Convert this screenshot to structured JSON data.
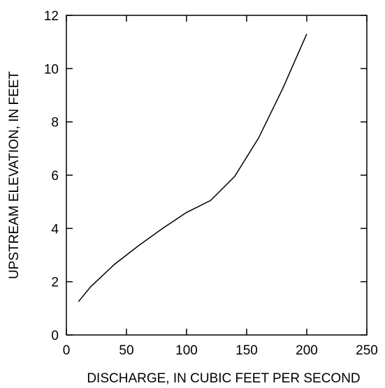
{
  "chart_data": {
    "type": "line",
    "xlabel": "DISCHARGE, IN CUBIC FEET PER SECOND",
    "ylabel": "UPSTREAM ELEVATION, IN FEET",
    "xlim": [
      0,
      250
    ],
    "ylim": [
      0,
      12
    ],
    "xticks": [
      0,
      50,
      100,
      150,
      200,
      250
    ],
    "yticks": [
      0,
      2,
      4,
      6,
      8,
      10,
      12
    ],
    "grid": false,
    "series": [
      {
        "x": [
          10,
          20,
          40,
          60,
          80,
          100,
          120,
          140,
          160,
          180,
          200
        ],
        "y": [
          1.25,
          1.8,
          2.65,
          3.35,
          4.0,
          4.6,
          5.05,
          5.95,
          7.4,
          9.25,
          11.3
        ]
      }
    ]
  }
}
